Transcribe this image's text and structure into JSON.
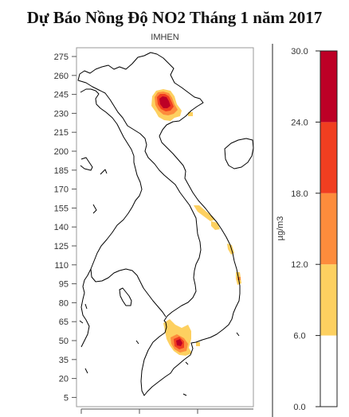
{
  "title": "Dự Báo Nồng Độ NO2 Tháng 1 năm 2017",
  "subtitle": "IMHEN",
  "map": {
    "y_ticks": [
      "275",
      "260",
      "245",
      "230",
      "215",
      "200",
      "185",
      "170",
      "155",
      "140",
      "125",
      "110",
      "95",
      "80",
      "65",
      "50",
      "35",
      "20",
      "5"
    ],
    "features": [
      "coastline",
      "country-border",
      "concentration-hotspots"
    ]
  },
  "colorbar": {
    "unit": "µg/m3",
    "ticks": [
      "30.0",
      "24.0",
      "18.0",
      "12.0",
      "6.0",
      "0.0"
    ],
    "levels": [
      {
        "from": "0.0",
        "to": "6.0",
        "color": "#ffffff"
      },
      {
        "from": "6.0",
        "to": "12.0",
        "color": "#fdd060"
      },
      {
        "from": "12.0",
        "to": "18.0",
        "color": "#fd8c3c"
      },
      {
        "from": "18.0",
        "to": "24.0",
        "color": "#f03e20"
      },
      {
        "from": "24.0",
        "to": "30.0",
        "color": "#bd0026"
      }
    ]
  }
}
